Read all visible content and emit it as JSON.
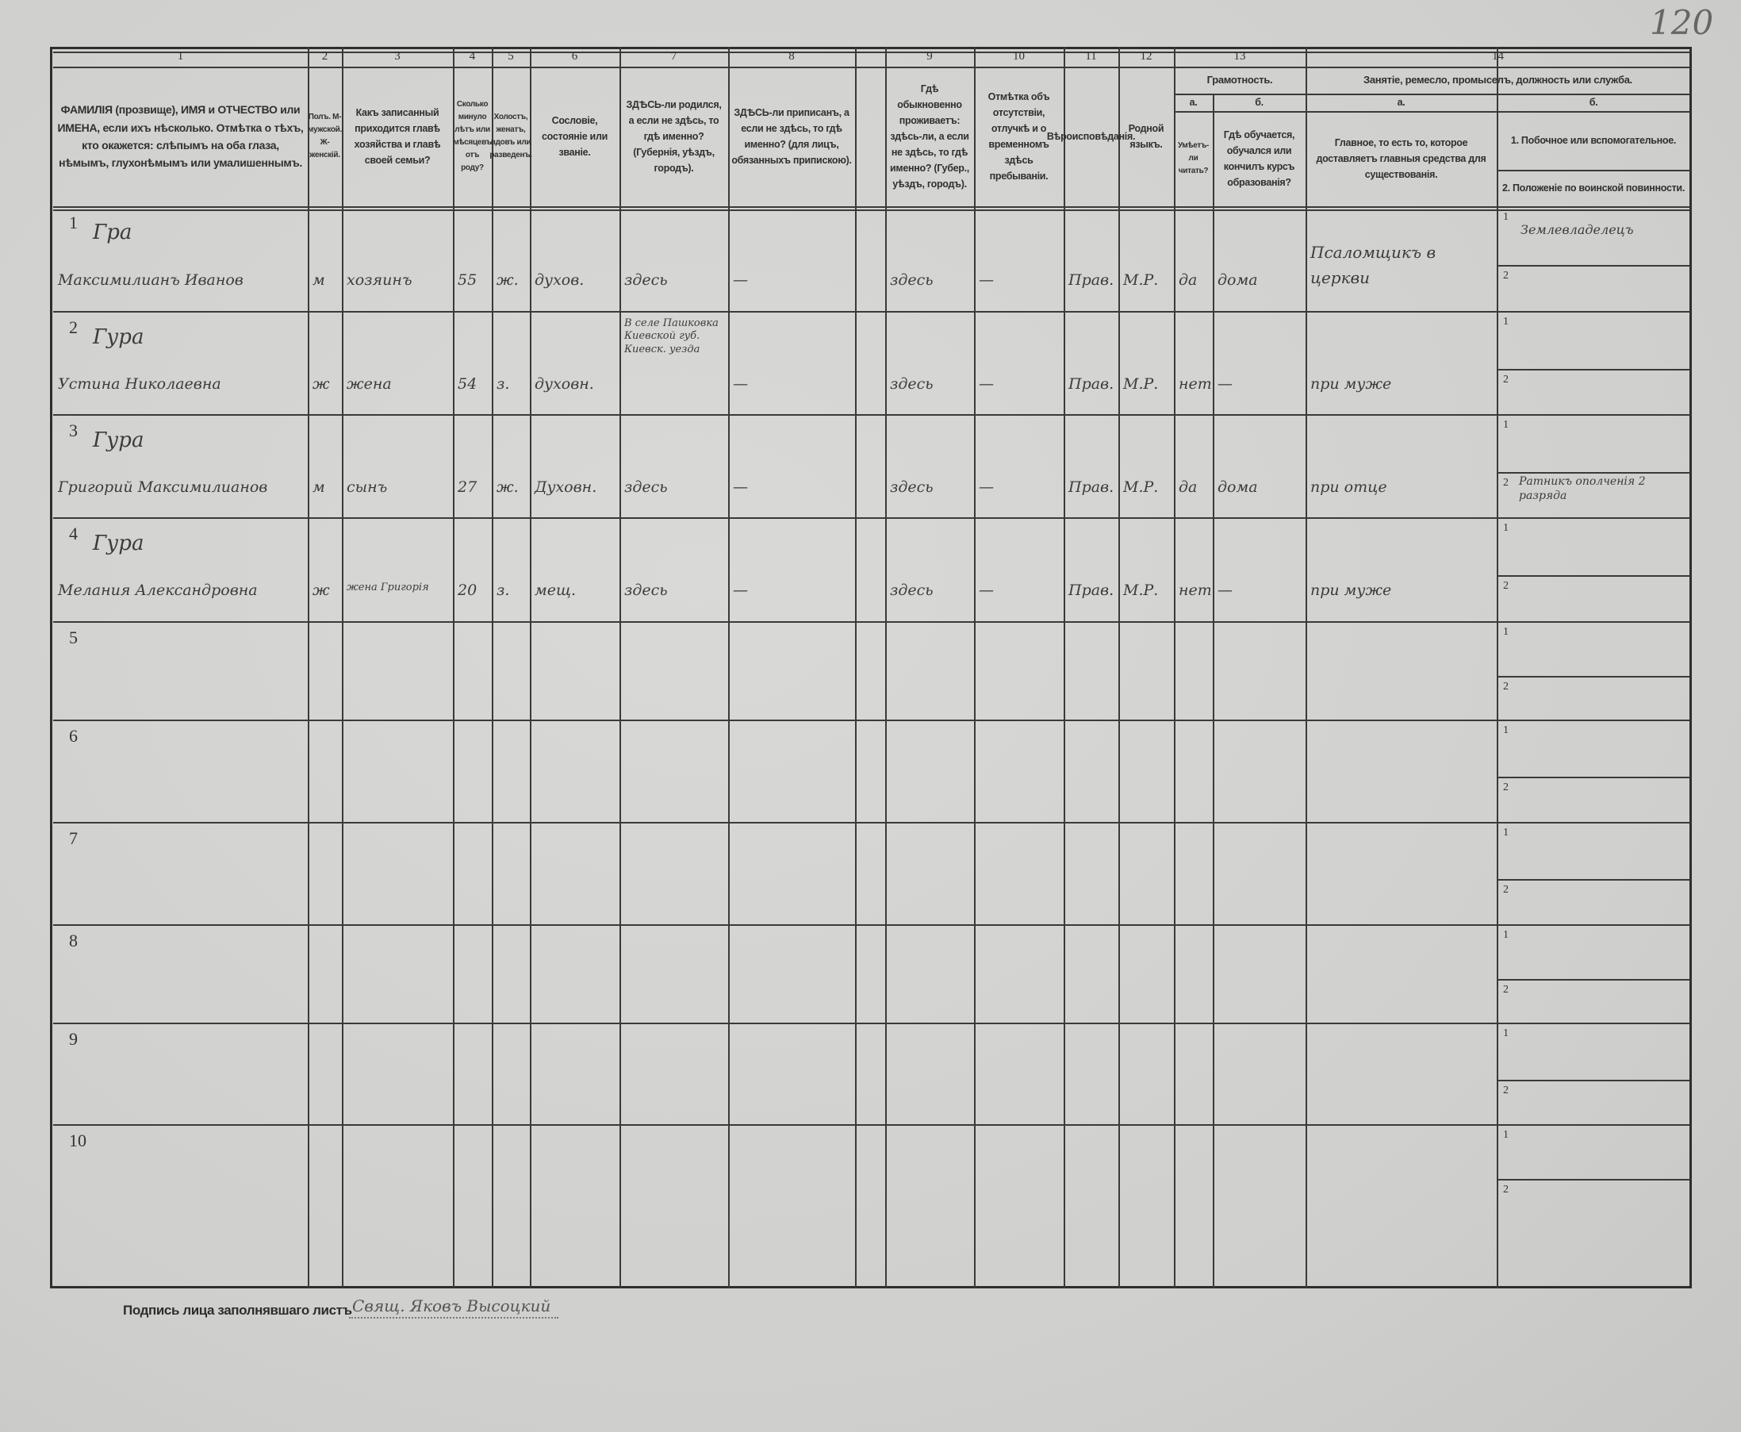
{
  "page_number": "120",
  "header": {
    "numbers": [
      "1",
      "2",
      "3",
      "4",
      "5",
      "6",
      "7",
      "8",
      "",
      "9",
      "10",
      "11",
      "12",
      "13",
      "",
      "14",
      ""
    ],
    "columns": [
      "ФАМИЛІЯ (прозвище), ИМЯ и ОТЧЕСТВО или ИМЕНА, если ихъ нѣсколько. Отмѣтка о тѣхъ, кто окажется: слѣпымъ на оба глаза, нѣмымъ, глухонѣмымъ или умалишеннымъ.",
      "Полъ. М-мужской. Ж-женскій.",
      "Какъ записанный приходится главѣ хозяйства и главѣ своей семьи?",
      "Сколько минуло лѣтъ или мѣсяцевъ отъ роду?",
      "Холостъ, женатъ, вдовъ или разведенъ.",
      "Сословіе, состояніе или званіе.",
      "ЗДѢСЬ-ли родился, а если не здѣсь, то гдѣ именно? (Губернія, уѣздъ, городъ).",
      "ЗДѢСЬ-ли приписанъ, а если не здѣсь, то гдѣ именно? (для лицъ, обязанныхъ припискою).",
      "",
      "Гдѣ обыкновенно проживаетъ: здѣсь-ли, а если не здѣсь, то гдѣ именно? (Губер., уѣздъ, городъ).",
      "Отмѣтка объ отсутствіи, отлучкѣ и о временномъ здѣсь пребываніи.",
      "Вѣроисповѣданія.",
      "Родной языкъ.",
      "Умѣетъ-ли читать?",
      "Гдѣ обучается, обучался или кончилъ курсъ образованія?",
      "Главное, то есть то, которое доставляетъ главныя средства для существованія.",
      "1. Побочное или вспомогательное."
    ],
    "literacy_title": "Грамотность.",
    "literacy_a": "а.",
    "literacy_b": "б.",
    "occupation_title": "Занятіе, ремесло, промыселъ, должность или служба.",
    "occupation_a": "а.",
    "occupation_b": "б.",
    "military": "2. Положеніе по воинской повинности."
  },
  "sub_labels": {
    "one": "1",
    "two": "2"
  },
  "rows": [
    {
      "n": "1",
      "surname": "Гра",
      "name": "Максимилианъ Иванов",
      "sex": "м",
      "relation": "хозяинъ",
      "age": "55",
      "marital": "ж.",
      "estate": "духов.",
      "birth": "здесь",
      "registered": "—",
      "blank": "",
      "residence": "здесь",
      "absence": "—",
      "religion": "Прав.",
      "language": "М.Р.",
      "lit_a": "да",
      "lit_b": "дома",
      "occ_main": "Псаломщикъ в церкви",
      "occ_aux": "Землевладелецъ",
      "military": ""
    },
    {
      "n": "2",
      "surname": "Гура",
      "name": "Устина Николаевна",
      "sex": "ж",
      "relation": "жена",
      "age": "54",
      "marital": "з.",
      "estate": "духовн.",
      "birth": "В селе Пашковка Киевской губ. Киевск. уезда",
      "registered": "—",
      "blank": "",
      "residence": "здесь",
      "absence": "—",
      "religion": "Прав.",
      "language": "М.Р.",
      "lit_a": "нет",
      "lit_b": "—",
      "occ_main": "при муже",
      "occ_aux": "",
      "military": ""
    },
    {
      "n": "3",
      "surname": "Гура",
      "name": "Григорий Максимилианов",
      "sex": "м",
      "relation": "сынъ",
      "age": "27",
      "marital": "ж.",
      "estate": "Духовн.",
      "birth": "здесь",
      "registered": "—",
      "blank": "",
      "residence": "здесь",
      "absence": "—",
      "religion": "Прав.",
      "language": "М.Р.",
      "lit_a": "да",
      "lit_b": "дома",
      "occ_main": "при отце",
      "occ_aux": "",
      "military": "Ратникъ ополченія 2 разряда"
    },
    {
      "n": "4",
      "surname": "Гура",
      "name": "Мелания Александровна",
      "sex": "ж",
      "relation": "жена Григорія",
      "age": "20",
      "marital": "з.",
      "estate": "мещ.",
      "birth": "здесь",
      "registered": "—",
      "blank": "",
      "residence": "здесь",
      "absence": "—",
      "religion": "Прав.",
      "language": "М.Р.",
      "lit_a": "нет",
      "lit_b": "—",
      "occ_main": "при муже",
      "occ_aux": "",
      "military": ""
    },
    {
      "n": "5"
    },
    {
      "n": "6"
    },
    {
      "n": "7"
    },
    {
      "n": "8"
    },
    {
      "n": "9"
    },
    {
      "n": "10"
    }
  ],
  "signature": {
    "label": "Подпись лица заполнявшаго листъ",
    "value": "Свящ. Яковъ Высоцкий"
  }
}
